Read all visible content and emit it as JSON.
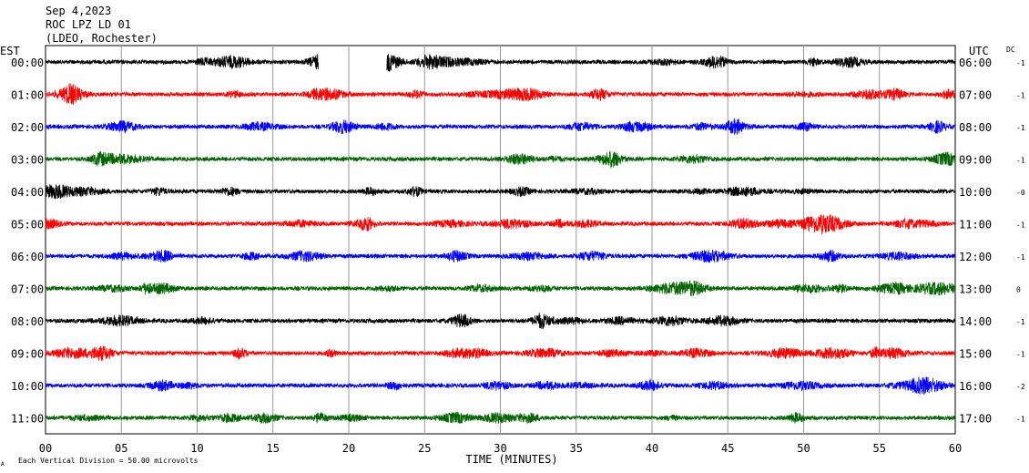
{
  "header": {
    "date": "Sep 4,2023",
    "station": "ROC LPZ LD 01",
    "network": "(LDEO, Rochester)"
  },
  "labels": {
    "left_tz": "EST",
    "right_tz": "UTC",
    "dc": "DC",
    "footer": "Each Vertical Division =   50.00 microvolts",
    "corner_mark": "A"
  },
  "chart_data": {
    "type": "line",
    "xlabel": "TIME (MINUTES)",
    "x_ticks": [
      "00",
      "05",
      "10",
      "15",
      "20",
      "25",
      "30",
      "35",
      "40",
      "45",
      "50",
      "55",
      "60"
    ],
    "xlim": [
      0,
      60
    ],
    "grid": true,
    "vertical_division_microvolts": 50.0,
    "row_colors": [
      "#000000",
      "#ff0000",
      "#0000ff",
      "#006400"
    ],
    "rows": [
      {
        "left": "00:00",
        "right": "06:00",
        "dc": "-1",
        "gap": [
          18,
          22.5
        ]
      },
      {
        "left": "01:00",
        "right": "07:00",
        "dc": "-1"
      },
      {
        "left": "02:00",
        "right": "08:00",
        "dc": "-1"
      },
      {
        "left": "03:00",
        "right": "09:00",
        "dc": "-1"
      },
      {
        "left": "04:00",
        "right": "10:00",
        "dc": "-0"
      },
      {
        "left": "05:00",
        "right": "11:00",
        "dc": "-1"
      },
      {
        "left": "06:00",
        "right": "12:00",
        "dc": "-1"
      },
      {
        "left": "07:00",
        "right": "13:00",
        "dc": "0"
      },
      {
        "left": "08:00",
        "right": "14:00",
        "dc": "-1"
      },
      {
        "left": "09:00",
        "right": "15:00",
        "dc": "-1"
      },
      {
        "left": "10:00",
        "right": "16:00",
        "dc": "-2"
      },
      {
        "left": "11:00",
        "right": "17:00",
        "dc": "-1"
      }
    ]
  }
}
